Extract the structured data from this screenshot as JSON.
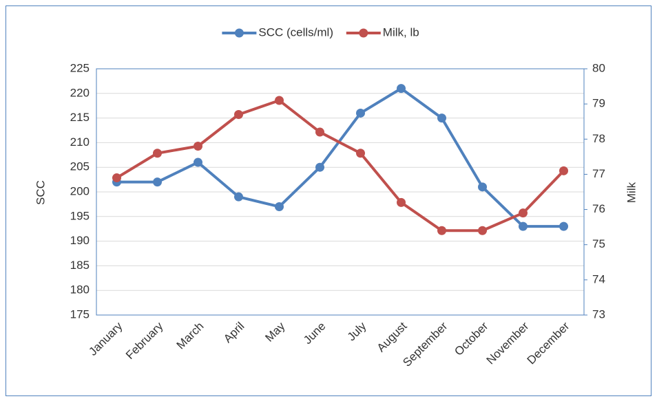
{
  "chart_data": {
    "type": "line",
    "categories": [
      "January",
      "February",
      "March",
      "April",
      "May",
      "June",
      "July",
      "August",
      "September",
      "October",
      "November",
      "December"
    ],
    "series": [
      {
        "name": "SCC (cells/ml)",
        "color": "#4f81bd",
        "values": [
          202,
          202,
          206,
          199,
          197,
          205,
          216,
          221,
          215,
          201,
          193,
          193
        ]
      },
      {
        "name": "Milk, lb",
        "color": "#c0504d",
        "axis": "y2",
        "values": [
          76.9,
          77.6,
          77.8,
          78.7,
          79.1,
          78.2,
          77.6,
          76.2,
          75.4,
          75.4,
          75.9,
          77.1
        ]
      }
    ],
    "ylabel": "SCC",
    "y2label": "Milk",
    "ylim": [
      175,
      225
    ],
    "yticks": [
      175,
      180,
      185,
      190,
      195,
      200,
      205,
      210,
      215,
      220,
      225
    ],
    "y2lim": [
      73,
      80
    ],
    "y2ticks": [
      73,
      74,
      75,
      76,
      77,
      78,
      79,
      80
    ],
    "grid": true,
    "legend": "top"
  }
}
